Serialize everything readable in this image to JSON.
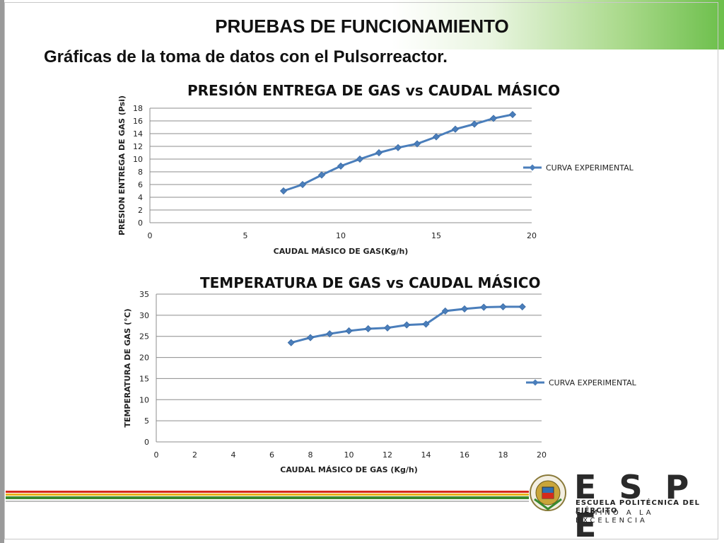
{
  "header": {
    "title": "PRUEBAS DE FUNCIONAMIENTO",
    "subtitle": "Gráficas de la toma de datos con el Pulsorreactor."
  },
  "chart_data": [
    {
      "type": "line",
      "title": "PRESIÓN ENTREGA DE GAS vs CAUDAL MÁSICO",
      "xlabel": "CAUDAL MÁSICO DE GAS(Kg/h)",
      "ylabel": "PRESION ENTREGA DE GAS (Psi)",
      "xlim": [
        0,
        20
      ],
      "ylim": [
        0,
        18
      ],
      "xticks": [
        0,
        5,
        10,
        15,
        20
      ],
      "yticks": [
        0,
        2,
        4,
        6,
        8,
        10,
        12,
        14,
        16,
        18
      ],
      "grid": "horizontal",
      "legend": "right",
      "series": [
        {
          "name": "CURVA EXPERIMENTAL",
          "color": "#4a7ebb",
          "x": [
            7,
            8,
            9,
            10,
            11,
            12,
            13,
            14,
            15,
            16,
            17,
            18,
            19
          ],
          "y": [
            5.0,
            6.0,
            7.5,
            8.9,
            10.0,
            11.0,
            11.8,
            12.4,
            13.5,
            14.7,
            15.5,
            16.4,
            17.0
          ]
        }
      ]
    },
    {
      "type": "line",
      "title": "TEMPERATURA DE GAS vs CAUDAL MÁSICO",
      "xlabel": "CAUDAL MÁSICO DE GAS (Kg/h)",
      "ylabel": "TEMPERATURA DE GAS (°C)",
      "xlim": [
        0,
        20
      ],
      "ylim": [
        0,
        35
      ],
      "xticks": [
        0,
        2,
        4,
        6,
        8,
        10,
        12,
        14,
        16,
        18,
        20
      ],
      "yticks": [
        0,
        5,
        10,
        15,
        20,
        25,
        30,
        35
      ],
      "grid": "horizontal",
      "legend": "right",
      "series": [
        {
          "name": "CURVA EXPERIMENTAL",
          "color": "#4a7ebb",
          "x": [
            7,
            8,
            9,
            10,
            11,
            12,
            13,
            14,
            15,
            16,
            17,
            18,
            19
          ],
          "y": [
            23.5,
            24.7,
            25.6,
            26.3,
            26.8,
            27.0,
            27.7,
            27.9,
            31.0,
            31.5,
            31.9,
            32.0,
            32.0
          ]
        }
      ]
    }
  ],
  "footer": {
    "logo_letters": "E S P E",
    "logo_line1": "ESCUELA POLITÉCNICA DEL EJÉRCITO",
    "logo_line2": "CAMINO A LA EXCELENCIA",
    "colors": {
      "red": "#d42a1c",
      "green": "#3a8a2e",
      "gold": "#e8b21a"
    }
  }
}
